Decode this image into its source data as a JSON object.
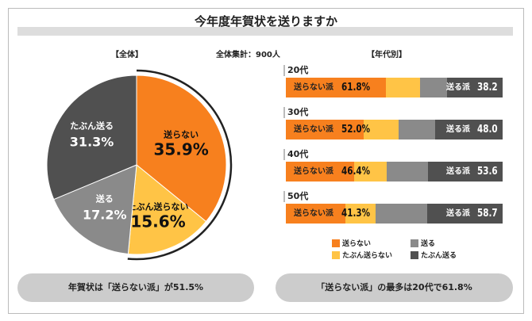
{
  "title": "今年度年賀状を送りますか",
  "headers": {
    "overall": "【全体】",
    "total": "全体集計：900人",
    "by_age": "【年代別】"
  },
  "colors": {
    "not_send": "#f7801e",
    "maybe_not": "#ffc446",
    "send": "#8a8a8a",
    "maybe_send": "#505050"
  },
  "chart_data": [
    {
      "type": "pie",
      "title": "【全体】",
      "slices": [
        {
          "name": "送らない",
          "value": 35.9,
          "label": "35.9%"
        },
        {
          "name": "たぶん送らない",
          "value": 15.6,
          "label": "15.6%"
        },
        {
          "name": "送る",
          "value": 17.2,
          "label": "17.2%"
        },
        {
          "name": "たぶん送る",
          "value": 31.3,
          "label": "31.3%"
        }
      ]
    },
    {
      "type": "bar",
      "orientation": "horizontal",
      "stacked": true,
      "title": "【年代別】",
      "categories": [
        "20代",
        "30代",
        "40代",
        "50代"
      ],
      "series": [
        {
          "name": "送らない",
          "values": [
            46.2,
            35.9,
            31.5,
            27.5
          ]
        },
        {
          "name": "たぶん送らない",
          "values": [
            15.6,
            16.1,
            14.9,
            13.8
          ]
        },
        {
          "name": "送る",
          "values": [
            12.4,
            16.8,
            19.0,
            23.8
          ]
        },
        {
          "name": "たぶん送る",
          "values": [
            25.8,
            31.2,
            34.6,
            34.9
          ]
        }
      ],
      "group_labels": {
        "not_send": "送らない派",
        "send": "送る派"
      },
      "not_send_totals": [
        "61.8%",
        "52.0%",
        "46.4%",
        "41.3%"
      ],
      "send_totals": [
        "38.2",
        "48.0",
        "53.6",
        "58.7"
      ],
      "legend": [
        "送らない",
        "送る",
        "たぶん送らない",
        "たぶん送る"
      ],
      "legend_position": "bottom"
    }
  ],
  "summaries": {
    "left": "年賀状は「送らない派」が51.5%",
    "right": "「送らない派」の最多は20代で61.8%"
  }
}
